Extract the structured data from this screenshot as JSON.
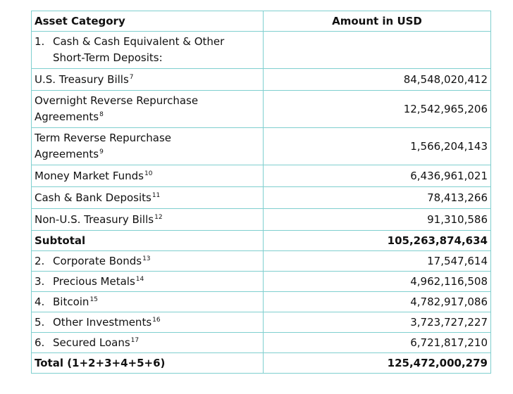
{
  "header": {
    "category": "Asset Category",
    "amount": "Amount in USD"
  },
  "group1": {
    "num": "1.",
    "line1": "Cash & Cash Equivalent & Other",
    "line2": "Short-Term Deposits:"
  },
  "sub": [
    {
      "label": "U.S. Treasury Bills",
      "note": "7",
      "amount": "84,548,020,412"
    },
    {
      "label1": "Overnight Reverse Repurchase",
      "label2": "Agreements",
      "note": "8",
      "amount": "12,542,965,206"
    },
    {
      "label1": "Term Reverse Repurchase",
      "label2": "Agreements",
      "note": "9",
      "amount": "1,566,204,143"
    },
    {
      "label": "Money Market Funds",
      "note": "10",
      "amount": "6,436,961,021"
    },
    {
      "label": "Cash & Bank Deposits",
      "note": "11",
      "amount": "78,413,266"
    },
    {
      "label": "Non-U.S. Treasury Bills",
      "note": "12",
      "amount": "91,310,586"
    }
  ],
  "subtotal": {
    "label": "Subtotal",
    "amount": "105,263,874,634"
  },
  "items": [
    {
      "num": "2.",
      "label": "Corporate Bonds",
      "note": "13",
      "amount": "17,547,614"
    },
    {
      "num": "3.",
      "label": "Precious Metals",
      "note": "14",
      "amount": "4,962,116,508"
    },
    {
      "num": "4.",
      "label": "Bitcoin",
      "note": "15",
      "amount": "4,782,917,086"
    },
    {
      "num": "5.",
      "label": "Other Investments",
      "note": "16",
      "amount": "3,723,727,227"
    },
    {
      "num": "6.",
      "label": "Secured Loans",
      "note": "17",
      "amount": "6,721,817,210"
    }
  ],
  "total": {
    "label": "Total (1+2+3+4+5+6)",
    "amount": "125,472,000,279"
  },
  "colors": {
    "border": "#7fcfcf"
  }
}
